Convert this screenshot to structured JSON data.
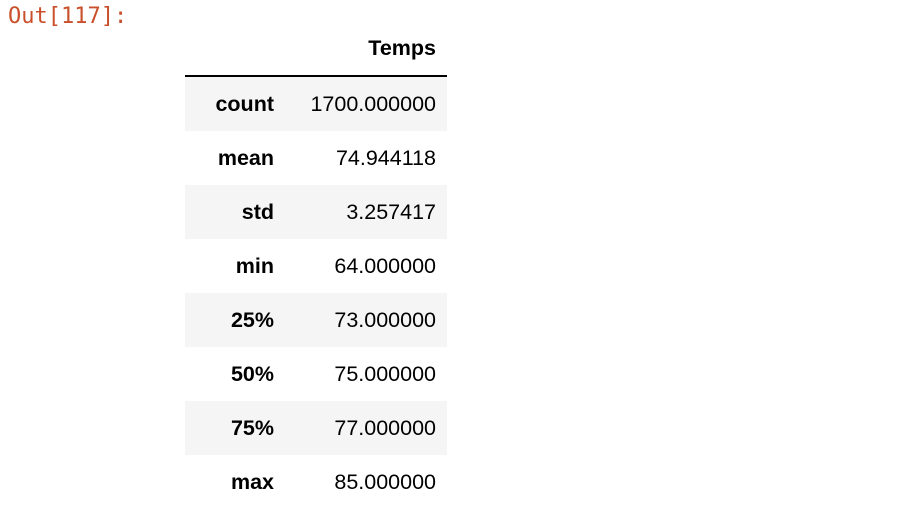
{
  "cell": {
    "output_prompt": "Out[117]:"
  },
  "table": {
    "column_header": "Temps",
    "rows": [
      {
        "label": "count",
        "value": "1700.000000"
      },
      {
        "label": "mean",
        "value": "74.944118"
      },
      {
        "label": "std",
        "value": "3.257417"
      },
      {
        "label": "min",
        "value": "64.000000"
      },
      {
        "label": "25%",
        "value": "73.000000"
      },
      {
        "label": "50%",
        "value": "75.000000"
      },
      {
        "label": "75%",
        "value": "77.000000"
      },
      {
        "label": "max",
        "value": "85.000000"
      }
    ]
  },
  "colors": {
    "prompt": "#c9502a",
    "striped_row": "#f5f5f5",
    "text": "#000000"
  }
}
